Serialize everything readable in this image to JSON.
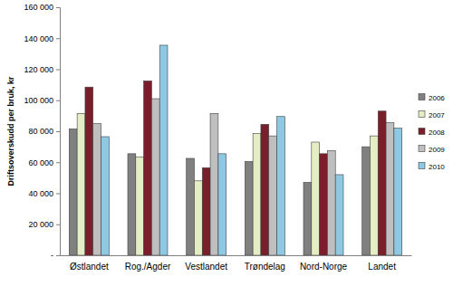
{
  "chart_data": {
    "type": "bar",
    "y_label": "Driftsoverskudd per bruk, kr",
    "categories": [
      "Østlandet",
      "Rog./Agder",
      "Vestlandet",
      "Trøndelag",
      "Nord-Norge",
      "Landet"
    ],
    "series": [
      {
        "name": "2006",
        "color": "#808080",
        "values": [
          81500,
          65500,
          62500,
          60500,
          47000,
          70000
        ]
      },
      {
        "name": "2007",
        "color": "#e4edc3",
        "values": [
          91500,
          63500,
          48000,
          78500,
          73000,
          77000
        ]
      },
      {
        "name": "2008",
        "color": "#7b1e2b",
        "values": [
          108500,
          112500,
          56500,
          84500,
          65500,
          93000
        ]
      },
      {
        "name": "2009",
        "color": "#bfbfbf",
        "values": [
          85000,
          101000,
          91500,
          77000,
          67500,
          85500
        ]
      },
      {
        "name": "2010",
        "color": "#8ec8e2",
        "values": [
          76500,
          135500,
          65500,
          89500,
          52000,
          82000
        ]
      }
    ],
    "ylim": [
      0,
      160000
    ],
    "yticks": [
      {
        "value": 0,
        "label": "-"
      },
      {
        "value": 20000,
        "label": "20 000"
      },
      {
        "value": 40000,
        "label": "40 000"
      },
      {
        "value": 60000,
        "label": "60 000"
      },
      {
        "value": 80000,
        "label": "80 000"
      },
      {
        "value": 100000,
        "label": "100 000"
      },
      {
        "value": 120000,
        "label": "120 000"
      },
      {
        "value": 140000,
        "label": "140 000"
      },
      {
        "value": 160000,
        "label": "160 000"
      }
    ],
    "grid": false,
    "legend": "right"
  }
}
